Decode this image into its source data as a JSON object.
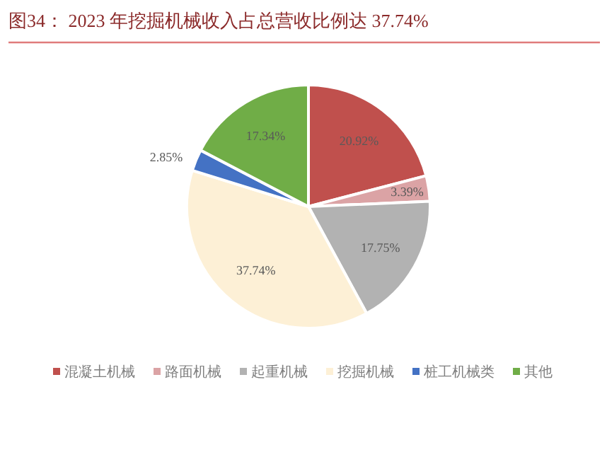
{
  "chart_data": {
    "type": "pie",
    "title": "图34：  2023 年挖掘机械收入占总营收比例达 37.74%",
    "categories": [
      "混凝土机械",
      "路面机械",
      "起重机械",
      "挖掘机械",
      "桩工机械类",
      "其他"
    ],
    "values": [
      20.92,
      3.39,
      17.75,
      37.74,
      2.85,
      17.34
    ],
    "colors": [
      "#c0504d",
      "#dba3a5",
      "#b2b2b2",
      "#fdf0d6",
      "#4472c4",
      "#70ad47"
    ],
    "value_labels": [
      "20.92%",
      "3.39%",
      "17.75%",
      "37.74%",
      "2.85%",
      "17.34%"
    ],
    "legend": "bottom"
  }
}
